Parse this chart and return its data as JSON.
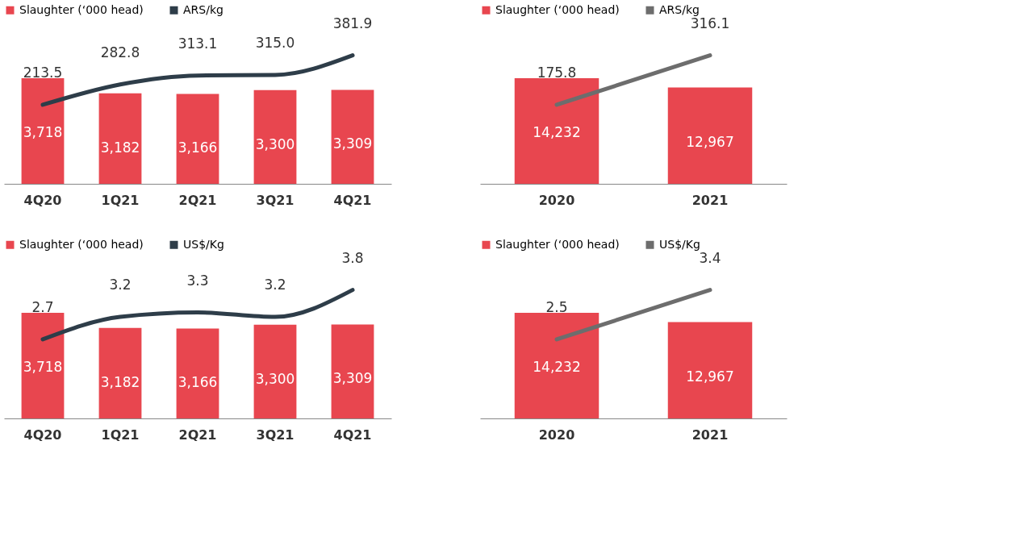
{
  "chart_data": [
    {
      "type": "bar",
      "categories": [
        "4Q20",
        "1Q21",
        "2Q21",
        "3Q21",
        "4Q21"
      ],
      "legend": "top",
      "series": [
        {
          "name": "Slaughter (‘000 head)",
          "color": "#e8464f",
          "values": [
            3718,
            3182,
            3166,
            3300,
            3309
          ],
          "value_labels": [
            "3,718",
            "3,182",
            "3,166",
            "3,300",
            "3,309"
          ]
        },
        {
          "name": "ARS/kg",
          "type": "line",
          "axis": "y2",
          "color": "#2e3d49",
          "values": [
            213.5,
            282.8,
            313.1,
            315.0,
            381.9
          ],
          "value_labels": [
            "213.5",
            "282.8",
            "313.1",
            "315.0",
            "381.9"
          ]
        }
      ]
    },
    {
      "type": "bar",
      "categories": [
        "2020",
        "2021"
      ],
      "legend": "top",
      "series": [
        {
          "name": "Slaughter (‘000 head)",
          "color": "#e8464f",
          "values": [
            14232,
            12967
          ],
          "value_labels": [
            "14,232",
            "12,967"
          ]
        },
        {
          "name": "ARS/kg",
          "type": "line",
          "axis": "y2",
          "color": "#6d6d6d",
          "values": [
            175.8,
            316.1
          ],
          "value_labels": [
            "175.8",
            "316.1"
          ]
        }
      ]
    },
    {
      "type": "bar",
      "categories": [
        "4Q20",
        "1Q21",
        "2Q21",
        "3Q21",
        "4Q21"
      ],
      "legend": "top",
      "series": [
        {
          "name": "Slaughter (‘000 head)",
          "color": "#e8464f",
          "values": [
            3718,
            3182,
            3166,
            3300,
            3309
          ],
          "value_labels": [
            "3,718",
            "3,182",
            "3,166",
            "3,300",
            "3,309"
          ]
        },
        {
          "name": "US$/Kg",
          "type": "line",
          "axis": "y2",
          "color": "#2e3d49",
          "values": [
            2.7,
            3.2,
            3.3,
            3.2,
            3.8
          ],
          "value_labels": [
            "2.7",
            "3.2",
            "3.3",
            "3.2",
            "3.8"
          ]
        }
      ]
    },
    {
      "type": "bar",
      "categories": [
        "2020",
        "2021"
      ],
      "legend": "top",
      "series": [
        {
          "name": "Slaughter (‘000 head)",
          "color": "#e8464f",
          "values": [
            14232,
            12967
          ],
          "value_labels": [
            "14,232",
            "12,967"
          ]
        },
        {
          "name": "US$/Kg",
          "type": "line",
          "axis": "y2",
          "color": "#6d6d6d",
          "values": [
            2.5,
            3.4
          ],
          "value_labels": [
            "2.5",
            "3.4"
          ]
        }
      ]
    }
  ]
}
